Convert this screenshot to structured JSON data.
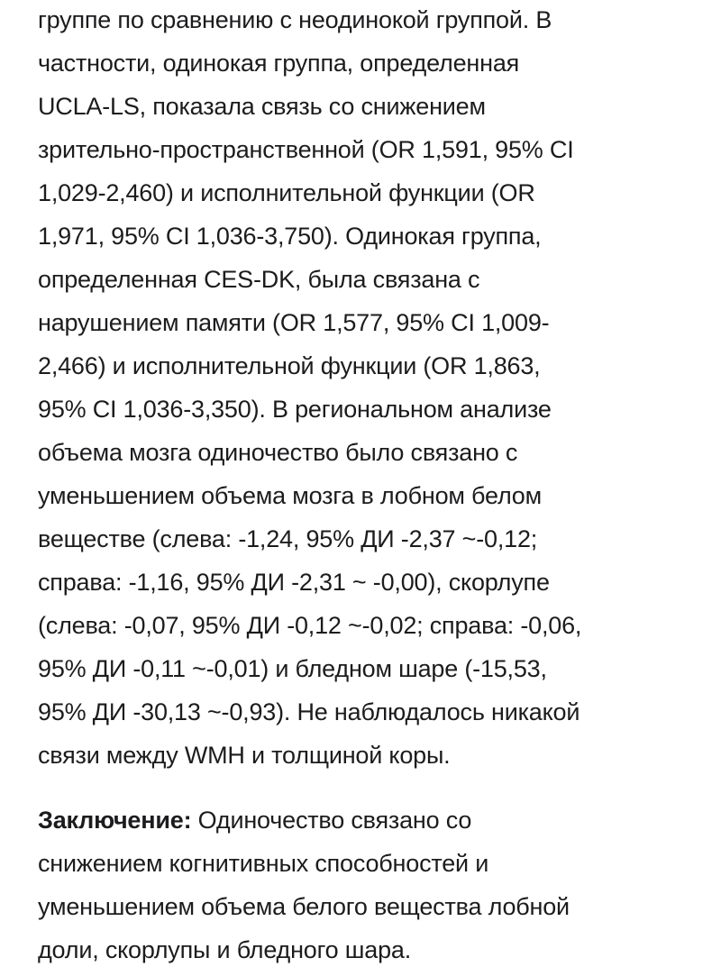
{
  "paragraph1": {
    "lines": [
      "группе по сравнению с неодинокой группой. В",
      "частности, одинокая группа, определенная",
      "UCLA-LS, показала связь со снижением",
      "зрительно-пространственной (OR 1,591, 95% CI",
      "1,029-2,460) и исполнительной функции (OR",
      "1,971, 95% CI 1,036-3,750). Одинокая группа,",
      "определенная CES-DK, была связана с",
      "нарушением памяти (OR 1,577, 95% CI 1,009-",
      "2,466) и исполнительной функции (OR 1,863,",
      "95% CI 1,036-3,350). В региональном анализе",
      "объема мозга одиночество было связано с",
      "уменьшением объема мозга в лобном белом",
      "веществе (слева: -1,24, 95% ДИ -2,37 ~-0,12;",
      "справа: -1,16, 95% ДИ -2,31 ~ -0,00), скорлупе",
      "(слева: -0,07, 95% ДИ -0,12 ~-0,02; справа: -0,06,",
      "95% ДИ -0,11 ~-0,01) и бледном шаре (-15,53,",
      "95% ДИ -30,13 ~-0,93). Не наблюдалось никакой",
      "связи между WMH и толщиной коры."
    ]
  },
  "conclusion": {
    "label": "Заключение:",
    "first_line_rest": " Одиночество связано со",
    "lines": [
      "снижением когнитивных способностей и",
      "уменьшением объема белого вещества лобной",
      "доли, скорлупы и бледного шара."
    ]
  }
}
